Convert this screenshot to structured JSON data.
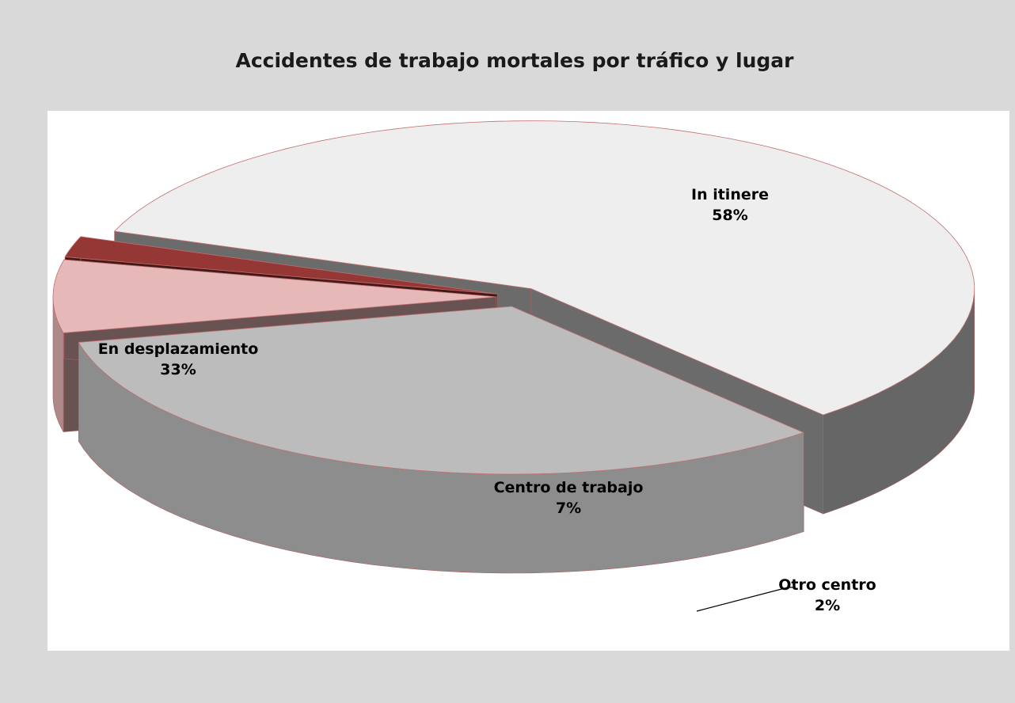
{
  "chart_data": {
    "type": "pie",
    "title": "Accidentes de trabajo mortales por tráfico  y lugar",
    "categories": [
      "In itinere",
      "En desplazamiento",
      "Centro de trabajo",
      "Otro centro"
    ],
    "values": [
      58,
      33,
      7,
      2
    ],
    "value_labels": [
      "58%",
      "33%",
      "7%",
      "2%"
    ],
    "colors": [
      "#eeeeee",
      "#bcbcbc",
      "#e6b8b7",
      "#953735"
    ]
  }
}
